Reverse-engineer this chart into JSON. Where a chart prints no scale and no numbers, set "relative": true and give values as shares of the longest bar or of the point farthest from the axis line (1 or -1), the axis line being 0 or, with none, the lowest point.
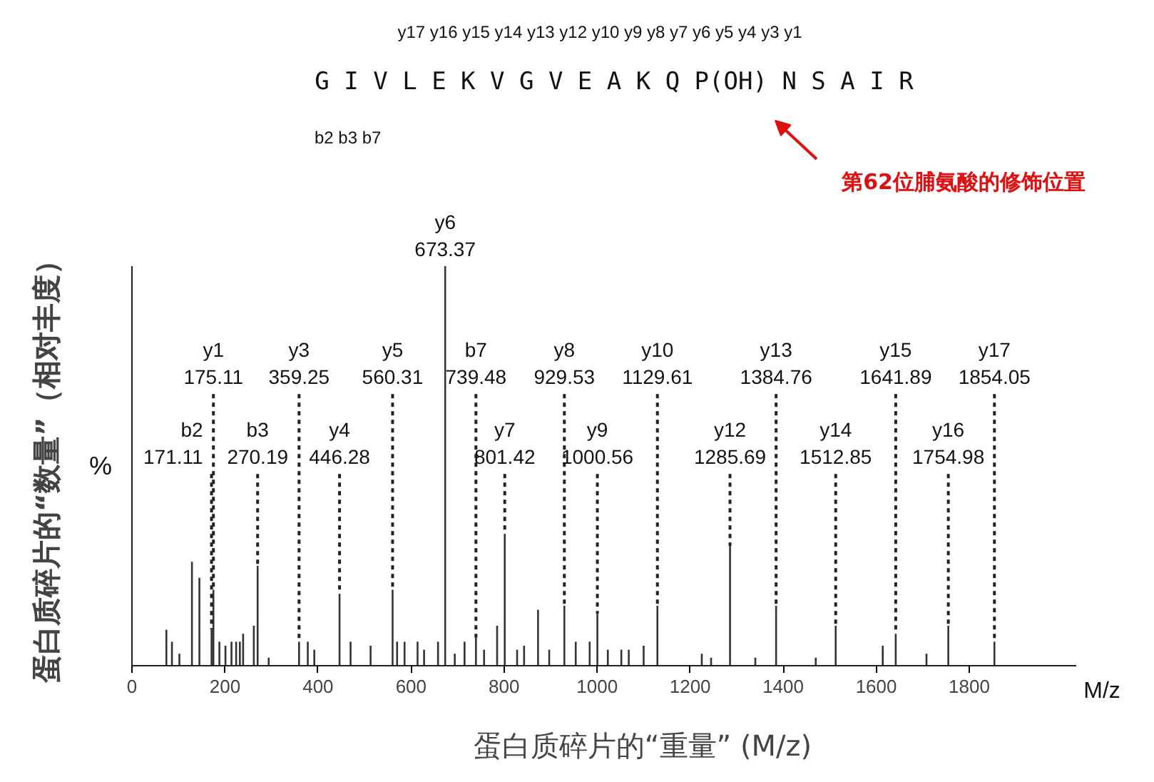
{
  "chart_data": {
    "type": "bar",
    "relative": true,
    "xlabel": "蛋白质碎片的“重量” (M/z)",
    "ylabel": "蛋白质碎片的“数量”（相对丰度）",
    "xlim": [
      0,
      2030
    ],
    "xticks": [
      0,
      200,
      400,
      600,
      800,
      1000,
      1200,
      1400,
      1600,
      1800
    ],
    "x": [
      74,
      86,
      102,
      129,
      145,
      171.11,
      175.11,
      188,
      201,
      214,
      224,
      232,
      239,
      262,
      270.19,
      294,
      359.25,
      378,
      392,
      446.28,
      470,
      513,
      560.31,
      570,
      586,
      614,
      628,
      658,
      673.37,
      694,
      715,
      739.48,
      757,
      785,
      801.42,
      828,
      843,
      873,
      897,
      929.53,
      954,
      984,
      1000.56,
      1023,
      1052,
      1068,
      1100,
      1129.61,
      1225,
      1245,
      1285.69,
      1340,
      1384.76,
      1470,
      1512.85,
      1614,
      1641.89,
      1708,
      1754.98,
      1854.05
    ],
    "values": [
      0.09,
      0.06,
      0.03,
      0.26,
      0.22,
      0.09,
      0.19,
      0.06,
      0.05,
      0.06,
      0.06,
      0.06,
      0.08,
      0.1,
      0.25,
      0.02,
      0.06,
      0.06,
      0.04,
      0.18,
      0.06,
      0.05,
      0.19,
      0.06,
      0.06,
      0.06,
      0.04,
      0.06,
      1.0,
      0.03,
      0.06,
      0.07,
      0.04,
      0.1,
      0.33,
      0.04,
      0.05,
      0.14,
      0.04,
      0.15,
      0.06,
      0.06,
      0.13,
      0.04,
      0.04,
      0.04,
      0.05,
      0.15,
      0.03,
      0.02,
      0.3,
      0.02,
      0.15,
      0.02,
      0.1,
      0.05,
      0.08,
      0.03,
      0.1,
      0.06
    ],
    "color": "#333333",
    "grid": false,
    "annotations": [
      "G I V L E K V G V E A K Q P(OH) N S A I R",
      "y17 y16 y15 y14 y13 y12   y10 y9 y8 y7 y6   y5 y4 y3   y1",
      "b2 b3     b7",
      "第62位脯氨酸的修饰位置",
      "%",
      "M/z",
      {
        "text": "b2\n171.11",
        "x": 171.11,
        "y": 0.09
      },
      {
        "text": "y1\n175.11",
        "x": 175.11,
        "y": 0.19
      },
      {
        "text": "b3\n270.19",
        "x": 270.19,
        "y": 0.25
      },
      {
        "text": "y3\n359.25",
        "x": 359.25,
        "y": 0.06
      },
      {
        "text": "y4\n446.28",
        "x": 446.28,
        "y": 0.18
      },
      {
        "text": "y5\n560.31",
        "x": 560.31,
        "y": 0.19
      },
      {
        "text": "y6\n673.37",
        "x": 673.37,
        "y": 1.0
      },
      {
        "text": "b7\n739.48",
        "x": 739.48,
        "y": 0.07
      },
      {
        "text": "y7\n801.42",
        "x": 801.42,
        "y": 0.33
      },
      {
        "text": "y8\n929.53",
        "x": 929.53,
        "y": 0.15
      },
      {
        "text": "y9\n1000.56",
        "x": 1000.56,
        "y": 0.13
      },
      {
        "text": "y10\n1129.61",
        "x": 1129.61,
        "y": 0.15
      },
      {
        "text": "y12\n1285.69",
        "x": 1285.69,
        "y": 0.3
      },
      {
        "text": "y13\n1384.76",
        "x": 1384.76,
        "y": 0.15
      },
      {
        "text": "y14\n1512.85",
        "x": 1512.85,
        "y": 0.1
      },
      {
        "text": "y15\n1641.89",
        "x": 1641.89,
        "y": 0.08
      },
      {
        "text": "y16\n1754.98",
        "x": 1754.98,
        "y": 0.1
      },
      {
        "text": "y17\n1854.05",
        "x": 1854.05,
        "y": 0.06
      }
    ]
  }
}
